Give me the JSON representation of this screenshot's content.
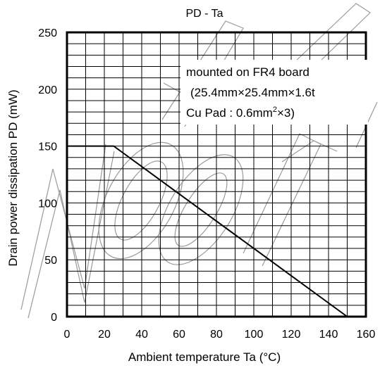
{
  "chart_data": {
    "type": "line",
    "title": "PD - Ta",
    "xlabel": "Ambient temperature  Ta (°C)",
    "ylabel": "Drain power dissipation  PD (mW)",
    "xlim": [
      0,
      160
    ],
    "ylim": [
      0,
      250
    ],
    "x_ticks": [
      0,
      20,
      40,
      60,
      80,
      100,
      120,
      140,
      160
    ],
    "y_ticks": [
      0,
      50,
      100,
      150,
      200,
      250
    ],
    "grid": true,
    "series": [
      {
        "x": [
          0,
          25,
          150
        ],
        "y": [
          150,
          150,
          0
        ]
      }
    ],
    "annotation": {
      "line1": "mounted on FR4 board",
      "line2": "(25.4mm×25.4mm×1.6t",
      "line3_prefix": "Cu Pad : 0.6mm",
      "line3_sup": "2",
      "line3_suffix": "×3)"
    }
  },
  "watermark": {
    "text": "Not Recommended"
  }
}
